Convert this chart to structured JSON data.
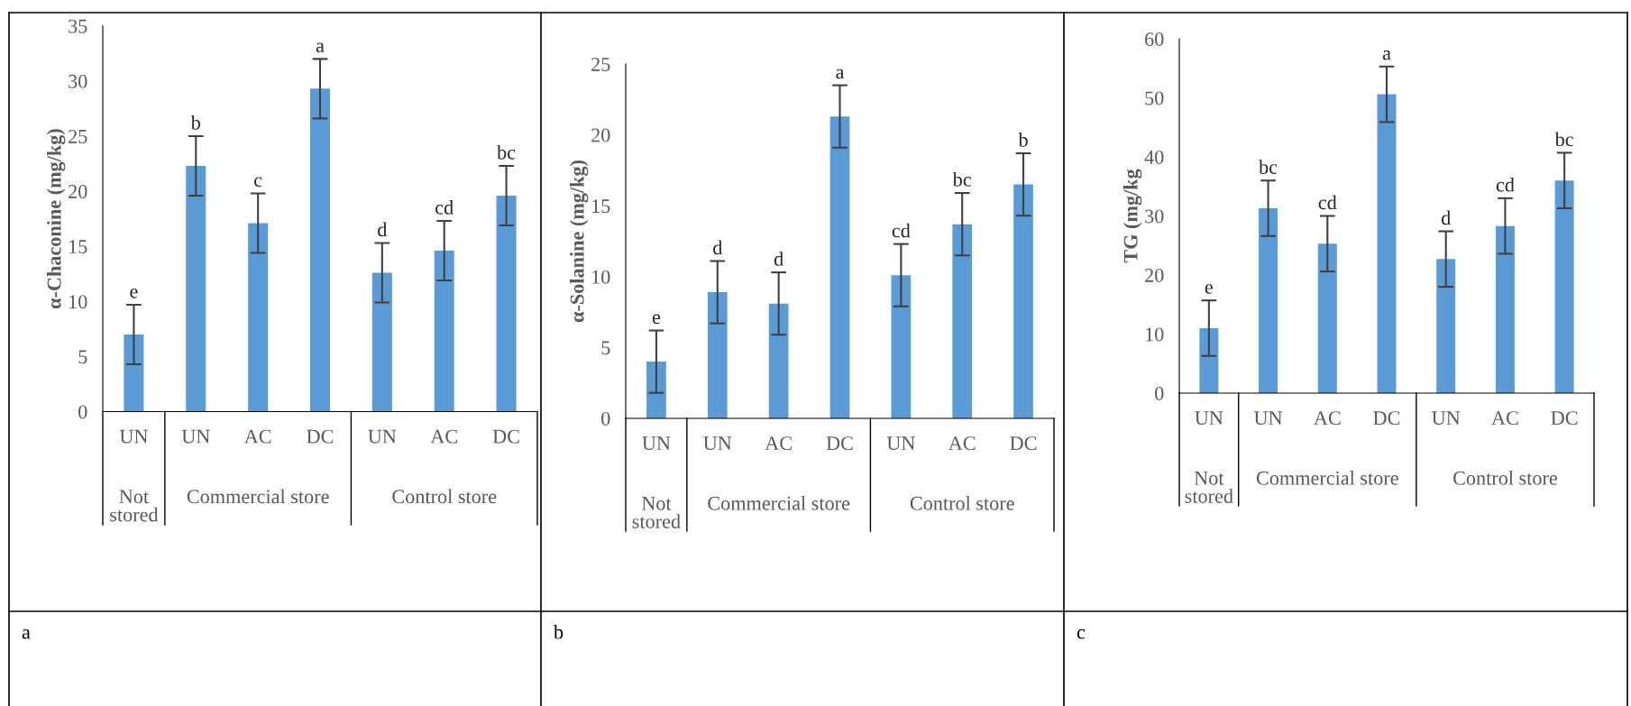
{
  "chart_data": [
    {
      "type": "bar",
      "ylabel": "α-Chaconine (mg/kg)",
      "categories": [
        "UN",
        "UN",
        "AC",
        "DC",
        "UN",
        "AC",
        "DC"
      ],
      "values": [
        7.0,
        22.3,
        17.1,
        29.3,
        12.6,
        14.6,
        19.6
      ],
      "errors": [
        2.7,
        2.7,
        2.7,
        2.7,
        2.7,
        2.7,
        2.7
      ],
      "value_labels": [
        "e",
        "b",
        "c",
        "a",
        "d",
        "cd",
        "bc"
      ],
      "color": "#5b9bd5",
      "ylim": [
        0,
        35
      ],
      "yticks": [
        0,
        5,
        10,
        15,
        20,
        25,
        30,
        35
      ],
      "annotations": [
        "Not stored",
        "Commercial store",
        "Control store",
        "a"
      ]
    },
    {
      "type": "bar",
      "ylabel": "α-Solanine (mg/kg)",
      "categories": [
        "UN",
        "UN",
        "AC",
        "DC",
        "UN",
        "AC",
        "DC"
      ],
      "values": [
        4.0,
        8.9,
        8.1,
        21.3,
        10.1,
        13.7,
        16.5
      ],
      "errors": [
        2.2,
        2.2,
        2.2,
        2.2,
        2.2,
        2.2,
        2.2
      ],
      "value_labels": [
        "e",
        "d",
        "d",
        "a",
        "cd",
        "bc",
        "b"
      ],
      "color": "#5b9bd5",
      "ylim": [
        0,
        25
      ],
      "yticks": [
        0,
        5,
        10,
        15,
        20,
        25
      ],
      "annotations": [
        "Not stored",
        "Commercial store",
        "Control store",
        "b"
      ]
    },
    {
      "type": "bar",
      "ylabel": "TG (mg/kg",
      "categories": [
        "UN",
        "UN",
        "AC",
        "DC",
        "UN",
        "AC",
        "DC"
      ],
      "values": [
        11.0,
        31.3,
        25.3,
        50.6,
        22.7,
        28.3,
        36.0
      ],
      "errors": [
        4.7,
        4.7,
        4.7,
        4.7,
        4.7,
        4.7,
        4.7
      ],
      "value_labels": [
        "e",
        "bc",
        "cd",
        "a",
        "d",
        "cd",
        "bc"
      ],
      "color": "#5b9bd5",
      "ylim": [
        0,
        60
      ],
      "yticks": [
        0,
        10,
        20,
        30,
        40,
        50,
        60
      ],
      "annotations": [
        "Not stored",
        "Commercial store",
        "Control store",
        "c"
      ]
    }
  ]
}
